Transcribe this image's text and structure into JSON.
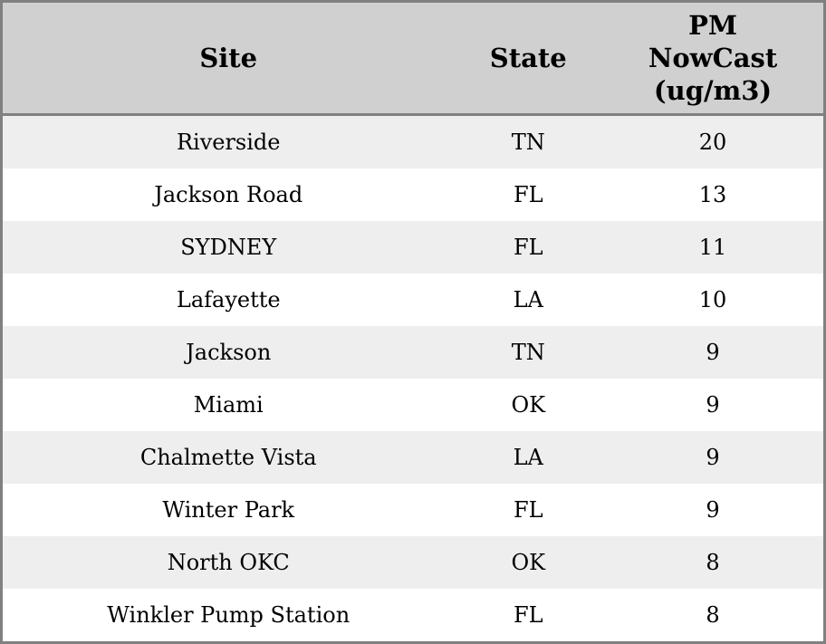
{
  "chart_data": {
    "type": "table",
    "title": "",
    "columns": [
      "Site",
      "State",
      "PM NowCast (ug/m3)"
    ],
    "rows": [
      {
        "site": "Riverside",
        "state": "TN",
        "pm_nowcast": 20
      },
      {
        "site": "Jackson Road",
        "state": "FL",
        "pm_nowcast": 13
      },
      {
        "site": "SYDNEY",
        "state": "FL",
        "pm_nowcast": 11
      },
      {
        "site": "Lafayette",
        "state": "LA",
        "pm_nowcast": 10
      },
      {
        "site": "Jackson",
        "state": "TN",
        "pm_nowcast": 9
      },
      {
        "site": "Miami",
        "state": "OK",
        "pm_nowcast": 9
      },
      {
        "site": "Chalmette Vista",
        "state": "LA",
        "pm_nowcast": 9
      },
      {
        "site": "Winter Park",
        "state": "FL",
        "pm_nowcast": 9
      },
      {
        "site": "North OKC",
        "state": "OK",
        "pm_nowcast": 8
      },
      {
        "site": "Winkler Pump Station",
        "state": "FL",
        "pm_nowcast": 8
      }
    ]
  },
  "colors": {
    "header_bg": "#d0d0d0",
    "border": "#808080",
    "row_stripe_bg": "#eeeeee",
    "row_bg": "#ffffff",
    "text": "#000000"
  }
}
